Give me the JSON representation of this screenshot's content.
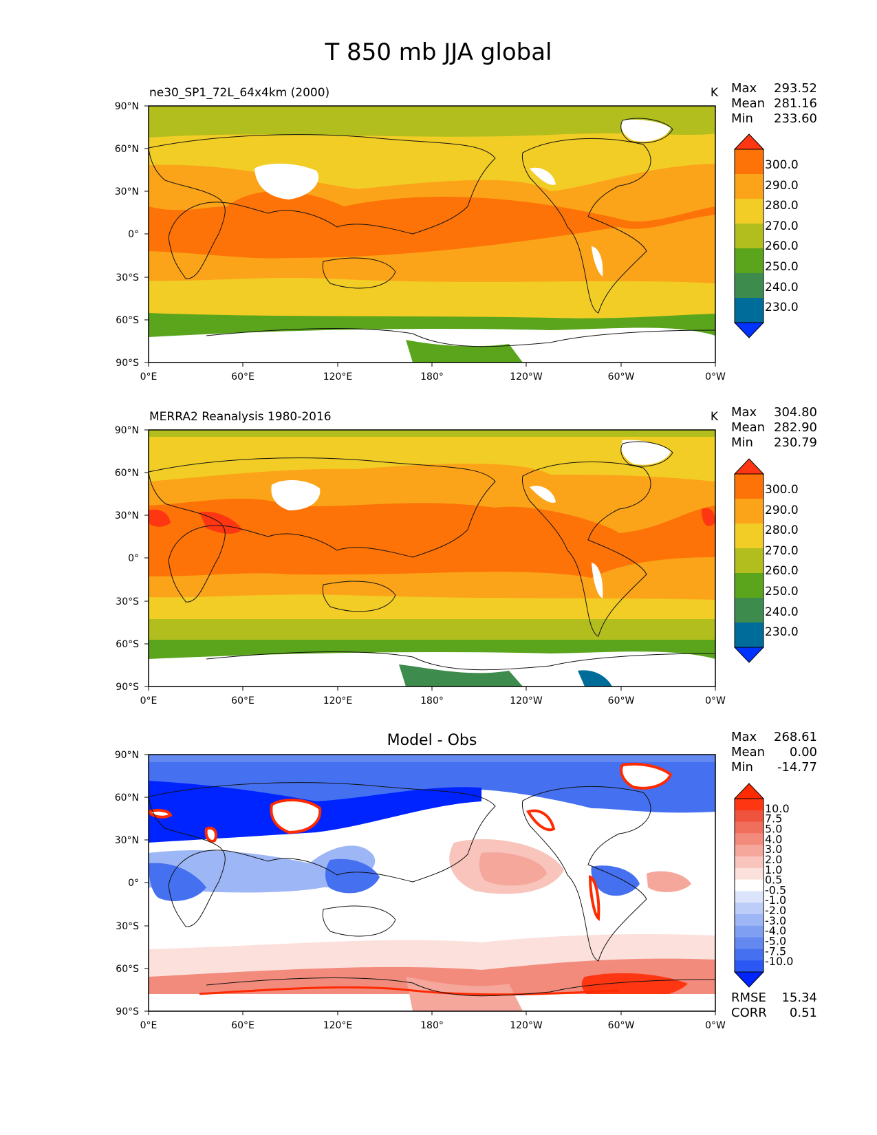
{
  "page_title": "T 850 mb JJA global",
  "chart_data": [
    {
      "type": "contour-map",
      "title": "ne30_SP1_72L_64x4km (2000)",
      "units": "K",
      "stats": [
        {
          "label": "Max",
          "value": "293.52"
        },
        {
          "label": "Mean",
          "value": "281.16"
        },
        {
          "label": "Min",
          "value": "233.60"
        }
      ],
      "colorbar_levels": [
        "300.0",
        "290.0",
        "280.0",
        "270.0",
        "260.0",
        "250.0",
        "240.0",
        "230.0"
      ],
      "xticks": [
        "0°E",
        "60°E",
        "120°E",
        "180°",
        "120°W",
        "60°W",
        "0°W"
      ],
      "yticks": [
        "90°N",
        "60°N",
        "30°N",
        "0°",
        "30°S",
        "60°S",
        "90°S"
      ],
      "xlim": [
        0,
        360
      ],
      "ylim": [
        -90,
        90
      ]
    },
    {
      "type": "contour-map",
      "title": "MERRA2 Reanalysis 1980-2016",
      "units": "K",
      "stats": [
        {
          "label": "Max",
          "value": "304.80"
        },
        {
          "label": "Mean",
          "value": "282.90"
        },
        {
          "label": "Min",
          "value": "230.79"
        }
      ],
      "colorbar_levels": [
        "300.0",
        "290.0",
        "280.0",
        "270.0",
        "260.0",
        "250.0",
        "240.0",
        "230.0"
      ],
      "xticks": [
        "0°E",
        "60°E",
        "120°E",
        "180°",
        "120°W",
        "60°W",
        "0°W"
      ],
      "yticks": [
        "90°N",
        "60°N",
        "30°N",
        "0°",
        "30°S",
        "60°S",
        "90°S"
      ],
      "xlim": [
        0,
        360
      ],
      "ylim": [
        -90,
        90
      ]
    },
    {
      "type": "contour-map",
      "title": "Model - Obs",
      "stats": [
        {
          "label": "Max",
          "value": "268.61"
        },
        {
          "label": "Mean",
          "value": "0.00"
        },
        {
          "label": "Min",
          "value": "-14.77"
        }
      ],
      "colorbar_levels": [
        "10.0",
        "7.5",
        "5.0",
        "4.0",
        "3.0",
        "2.0",
        "1.0",
        "0.5",
        "-0.5",
        "-1.0",
        "-2.0",
        "-3.0",
        "-4.0",
        "-5.0",
        "-7.5",
        "-10.0"
      ],
      "metrics": [
        {
          "label": "RMSE",
          "value": "15.34"
        },
        {
          "label": "CORR",
          "value": "0.51"
        }
      ],
      "xticks": [
        "0°E",
        "60°E",
        "120°E",
        "180°",
        "120°W",
        "60°W",
        "0°W"
      ],
      "yticks": [
        "90°N",
        "60°N",
        "30°N",
        "0°",
        "30°S",
        "60°S",
        "90°S"
      ],
      "xlim": [
        0,
        360
      ],
      "ylim": [
        -90,
        90
      ]
    }
  ],
  "colors": {
    "temp_scale": [
      "#0033ff",
      "#006c9a",
      "#3d8c4e",
      "#5aa51c",
      "#b2be1e",
      "#f2cd26",
      "#fba419",
      "#fd7307",
      "#fe3612"
    ],
    "diff_scale": [
      "#0024ff",
      "#2b57f5",
      "#4571f1",
      "#6389f1",
      "#7f9ff3",
      "#9db6f6",
      "#bccdf8",
      "#dbe4fb",
      "#ffffff",
      "#fbe0dc",
      "#f8c4bc",
      "#f5a79c",
      "#f28b7c",
      "#f06f5c",
      "#ef523d",
      "#fe3612",
      "#fe2a00"
    ],
    "land_line": "#111111",
    "missing": "#ffffff"
  }
}
